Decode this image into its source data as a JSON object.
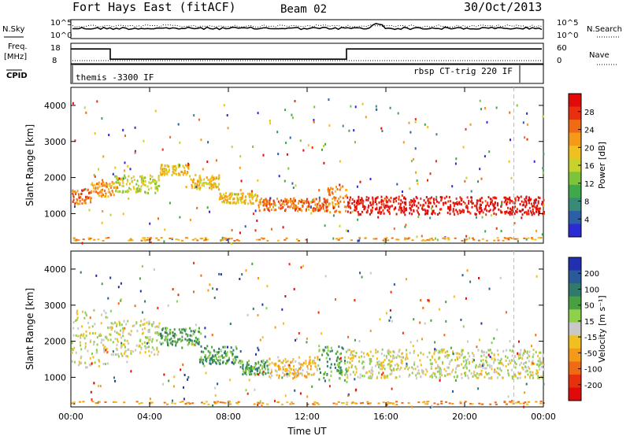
{
  "header": {
    "station": "Fort Hays East (fitACF)",
    "beam": "Beam 02",
    "date": "30/Oct/2013"
  },
  "strip": {
    "nsky_label": "N.Sky",
    "nsearch_label": "N.Search",
    "freq_label_1": "Freq.",
    "freq_label_2": "[MHz]",
    "nave_label": "Nave",
    "cpid_label": "CPID",
    "noise_ticks": [
      "10^5",
      "10^0"
    ],
    "noise_ticks_right": [
      "10^5",
      "10^0"
    ],
    "freq_ticks": [
      "18",
      "8"
    ],
    "nave_ticks": [
      "60",
      "0"
    ],
    "cpid_entries": [
      "themis -3300 IF",
      "rbsp CT-trig 220 IF"
    ],
    "freq_steps": [
      {
        "t": 0.0,
        "mhz": 16
      },
      {
        "t": 2.0,
        "mhz": 11
      },
      {
        "t": 14.0,
        "mhz": 16
      }
    ]
  },
  "chart_data": [
    {
      "type": "heatmap",
      "name": "power-panel",
      "ylabel": "Slant Range [km]",
      "xlabel": "",
      "x_ticks": [
        "00:00",
        "04:00",
        "08:00",
        "12:00",
        "16:00",
        "20:00",
        "00:00"
      ],
      "y_ticks": [
        "1000",
        "2000",
        "3000",
        "4000"
      ],
      "colorbar": {
        "label": "Power [dB]",
        "ticks": [
          "4",
          "8",
          "12",
          "16",
          "20",
          "24",
          "28"
        ],
        "colors": [
          "#2b2bd6",
          "#2d5fa8",
          "#3a8a78",
          "#3fa84a",
          "#7cc43a",
          "#c8d22a",
          "#f0c020",
          "#f59a18",
          "#f06a14",
          "#e83010",
          "#e00a0a"
        ]
      },
      "xlim": [
        0,
        24
      ],
      "ylim": [
        180,
        4500
      ],
      "bands": [
        {
          "t0": 0.0,
          "t1": 1.0,
          "r0": 1300,
          "r1": 1700,
          "level": 8
        },
        {
          "t0": 1.0,
          "t1": 2.2,
          "r0": 1500,
          "r1": 1900,
          "level": 7
        },
        {
          "t0": 2.2,
          "t1": 4.5,
          "r0": 1600,
          "r1": 2100,
          "level": 5
        },
        {
          "t0": 4.5,
          "t1": 6.0,
          "r0": 2100,
          "r1": 2400,
          "level": 6
        },
        {
          "t0": 6.0,
          "t1": 7.5,
          "r0": 1700,
          "r1": 2100,
          "level": 6
        },
        {
          "t0": 7.5,
          "t1": 9.5,
          "r0": 1300,
          "r1": 1600,
          "level": 6
        },
        {
          "t0": 9.5,
          "t1": 13.0,
          "r0": 1100,
          "r1": 1450,
          "level": 8
        },
        {
          "t0": 13.0,
          "t1": 14.0,
          "r0": 1000,
          "r1": 1800,
          "level": 7
        },
        {
          "t0": 14.0,
          "t1": 24.0,
          "r0": 1000,
          "r1": 1500,
          "level": 10
        }
      ]
    },
    {
      "type": "heatmap",
      "name": "velocity-panel",
      "ylabel": "Slant Range [km]",
      "xlabel": "Time UT",
      "x_ticks": [
        "00:00",
        "04:00",
        "08:00",
        "12:00",
        "16:00",
        "20:00",
        "00:00"
      ],
      "y_ticks": [
        "1000",
        "2000",
        "3000",
        "4000"
      ],
      "colorbar": {
        "label": "Velocity [m s⁻¹]",
        "ticks": [
          "200",
          "100",
          "50",
          "15",
          "-15",
          "-50",
          "-100",
          "-200"
        ],
        "colors": [
          "#2030b0",
          "#2a5a9a",
          "#2f7a6a",
          "#4aa040",
          "#8ed04a",
          "#c8c8c8",
          "#f0c020",
          "#f59a18",
          "#f06a14",
          "#e8300c",
          "#e00a0a"
        ]
      },
      "xlim": [
        0,
        24
      ],
      "ylim": [
        180,
        4500
      ],
      "bands": [
        {
          "t0": 0.0,
          "t1": 2.0,
          "r0": 1300,
          "r1": 2900,
          "level": 5
        },
        {
          "t0": 2.0,
          "t1": 4.5,
          "r0": 1600,
          "r1": 2600,
          "level": 5
        },
        {
          "t0": 4.5,
          "t1": 6.5,
          "r0": 1900,
          "r1": 2400,
          "level": 3
        },
        {
          "t0": 6.5,
          "t1": 8.5,
          "r0": 1400,
          "r1": 1900,
          "level": 3
        },
        {
          "t0": 8.5,
          "t1": 10.0,
          "r0": 1100,
          "r1": 1500,
          "level": 3
        },
        {
          "t0": 10.0,
          "t1": 12.5,
          "r0": 1000,
          "r1": 1600,
          "level": 6
        },
        {
          "t0": 12.5,
          "t1": 14.0,
          "r0": 900,
          "r1": 1900,
          "level": 3
        },
        {
          "t0": 14.0,
          "t1": 24.0,
          "r0": 1000,
          "r1": 1800,
          "level": 5
        }
      ]
    }
  ]
}
